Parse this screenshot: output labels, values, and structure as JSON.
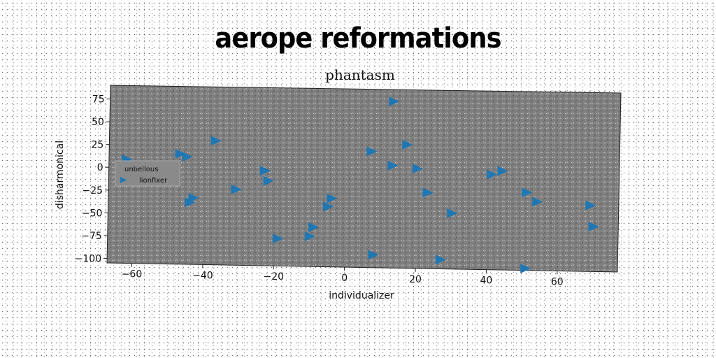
{
  "header": {
    "title": "aerope reformations"
  },
  "chart_data": {
    "type": "scatter",
    "title": "phantasm",
    "xlabel": "individualizer",
    "ylabel": "disharmonical",
    "xlim": [
      -67,
      77
    ],
    "ylim": [
      -105,
      90
    ],
    "xticks": [
      -60,
      -40,
      -20,
      0,
      20,
      40,
      60
    ],
    "yticks": [
      75,
      50,
      25,
      0,
      -25,
      -50,
      -75,
      -100
    ],
    "grid": false,
    "legend": {
      "title": "unbellous",
      "placement": "center-left"
    },
    "background_color": "#808080",
    "series": [
      {
        "name": "lionfixer",
        "marker": "triangle-right",
        "color": "#1f77b4",
        "x": [
          13,
          -62,
          -47,
          -45,
          -37,
          -23,
          -22,
          -31,
          -43,
          -44,
          -4,
          -5,
          -9,
          -10,
          -19,
          7,
          13,
          17,
          20,
          23,
          30,
          41,
          44,
          51,
          54,
          69,
          70,
          8,
          27,
          51
        ],
        "y": [
          77,
          9,
          16,
          13,
          31,
          -1,
          -12,
          -22,
          -32,
          -37,
          -30,
          -39,
          -62,
          -72,
          -75,
          22,
          7,
          30,
          4,
          -22,
          -44,
          -1,
          3,
          -20,
          -30,
          -33,
          -56,
          -91,
          -95,
          -103
        ]
      }
    ]
  }
}
